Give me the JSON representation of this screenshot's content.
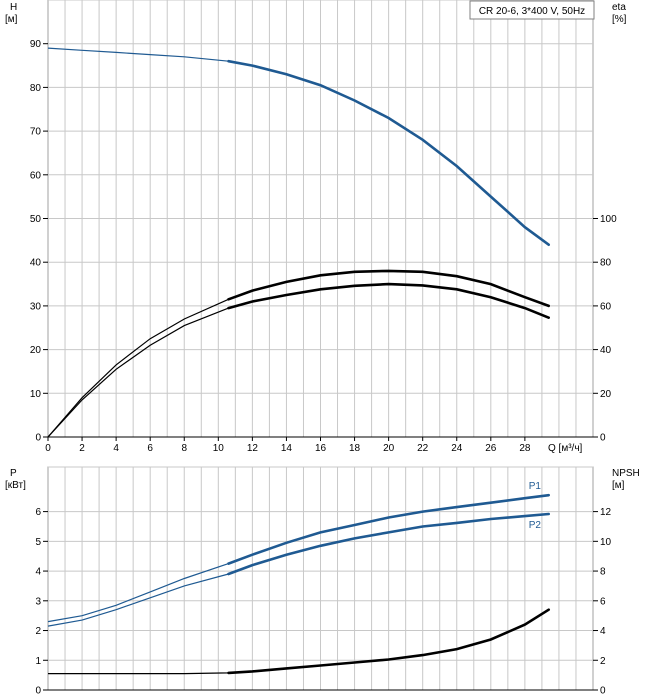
{
  "chart_data": [
    {
      "type": "line",
      "title": "CR 20-6, 3*400 V, 50Hz",
      "left_axis": {
        "label_line1": "H",
        "label_line2": "[м]",
        "range": [
          0,
          100
        ],
        "ticks": [
          0,
          10,
          20,
          30,
          40,
          50,
          60,
          70,
          80,
          90
        ]
      },
      "right_axis": {
        "label_line1": "eta",
        "label_line2": "[%]",
        "range": [
          0,
          200
        ],
        "ticks": [
          0,
          20,
          40,
          60,
          80,
          100
        ]
      },
      "x_axis": {
        "label": "Q [м³/ч]",
        "range": [
          0,
          32
        ],
        "ticks": [
          0,
          2,
          4,
          6,
          8,
          10,
          12,
          14,
          16,
          18,
          20,
          22,
          24,
          26,
          28
        ]
      },
      "grid": true,
      "operating_range_start": 10.6,
      "series": [
        {
          "id": "head",
          "axis": "left",
          "color": "#1f5a92",
          "x": [
            0,
            2,
            4,
            6,
            8,
            10.6,
            12,
            14,
            16,
            18,
            20,
            22,
            24,
            26,
            28,
            29.4
          ],
          "y": [
            89,
            88.5,
            88,
            87.5,
            87,
            86,
            85,
            83,
            80.5,
            77,
            73,
            68,
            62,
            55,
            48,
            44
          ]
        },
        {
          "id": "eta-1",
          "axis": "left",
          "color": "#000000",
          "x": [
            0,
            2,
            4,
            6,
            8,
            10.6,
            12,
            14,
            16,
            18,
            20,
            22,
            24,
            26,
            28,
            29.4
          ],
          "y": [
            0,
            9,
            16.5,
            22.5,
            27,
            31.5,
            33.5,
            35.5,
            37,
            37.8,
            38,
            37.8,
            36.8,
            35,
            32,
            30
          ]
        },
        {
          "id": "eta-2",
          "axis": "left",
          "color": "#000000",
          "x": [
            0,
            2,
            4,
            6,
            8,
            10.6,
            12,
            14,
            16,
            18,
            20,
            22,
            24,
            26,
            28,
            29.4
          ],
          "y": [
            0,
            8.5,
            15.5,
            21,
            25.5,
            29.5,
            31,
            32.5,
            33.8,
            34.6,
            35,
            34.7,
            33.8,
            32,
            29.5,
            27.3
          ]
        }
      ]
    },
    {
      "type": "line",
      "left_axis": {
        "label_line1": "P",
        "label_line2": "[кВт]",
        "range": [
          0,
          7.5
        ],
        "ticks": [
          0,
          1,
          2,
          3,
          4,
          5,
          6
        ]
      },
      "right_axis": {
        "label_line1": "NPSH",
        "label_line2": "[м]",
        "range": [
          0,
          15
        ],
        "ticks": [
          0,
          2,
          4,
          6,
          8,
          10,
          12
        ]
      },
      "grid": true,
      "operating_range_start": 10.6,
      "series": [
        {
          "id": "p1",
          "name": "P1",
          "axis": "left",
          "color": "#1f5a92",
          "x": [
            0,
            2,
            4,
            6,
            8,
            10.6,
            12,
            14,
            16,
            18,
            20,
            22,
            24,
            26,
            28,
            29.4
          ],
          "y": [
            2.3,
            2.5,
            2.85,
            3.3,
            3.75,
            4.25,
            4.55,
            4.95,
            5.3,
            5.55,
            5.8,
            6.0,
            6.15,
            6.3,
            6.45,
            6.55
          ]
        },
        {
          "id": "p2",
          "name": "P2",
          "axis": "left",
          "color": "#1f5a92",
          "x": [
            0,
            2,
            4,
            6,
            8,
            10.6,
            12,
            14,
            16,
            18,
            20,
            22,
            24,
            26,
            28,
            29.4
          ],
          "y": [
            2.15,
            2.35,
            2.7,
            3.1,
            3.5,
            3.9,
            4.2,
            4.55,
            4.85,
            5.1,
            5.3,
            5.5,
            5.62,
            5.75,
            5.85,
            5.92
          ]
        },
        {
          "id": "npsh",
          "axis": "right",
          "color": "#000000",
          "x": [
            0,
            2,
            4,
            6,
            8,
            10.6,
            12,
            14,
            16,
            18,
            20,
            22,
            24,
            26,
            28,
            29.4
          ],
          "y": [
            1.1,
            1.1,
            1.1,
            1.1,
            1.1,
            1.15,
            1.25,
            1.45,
            1.65,
            1.85,
            2.05,
            2.35,
            2.75,
            3.4,
            4.4,
            5.4
          ]
        }
      ]
    }
  ]
}
